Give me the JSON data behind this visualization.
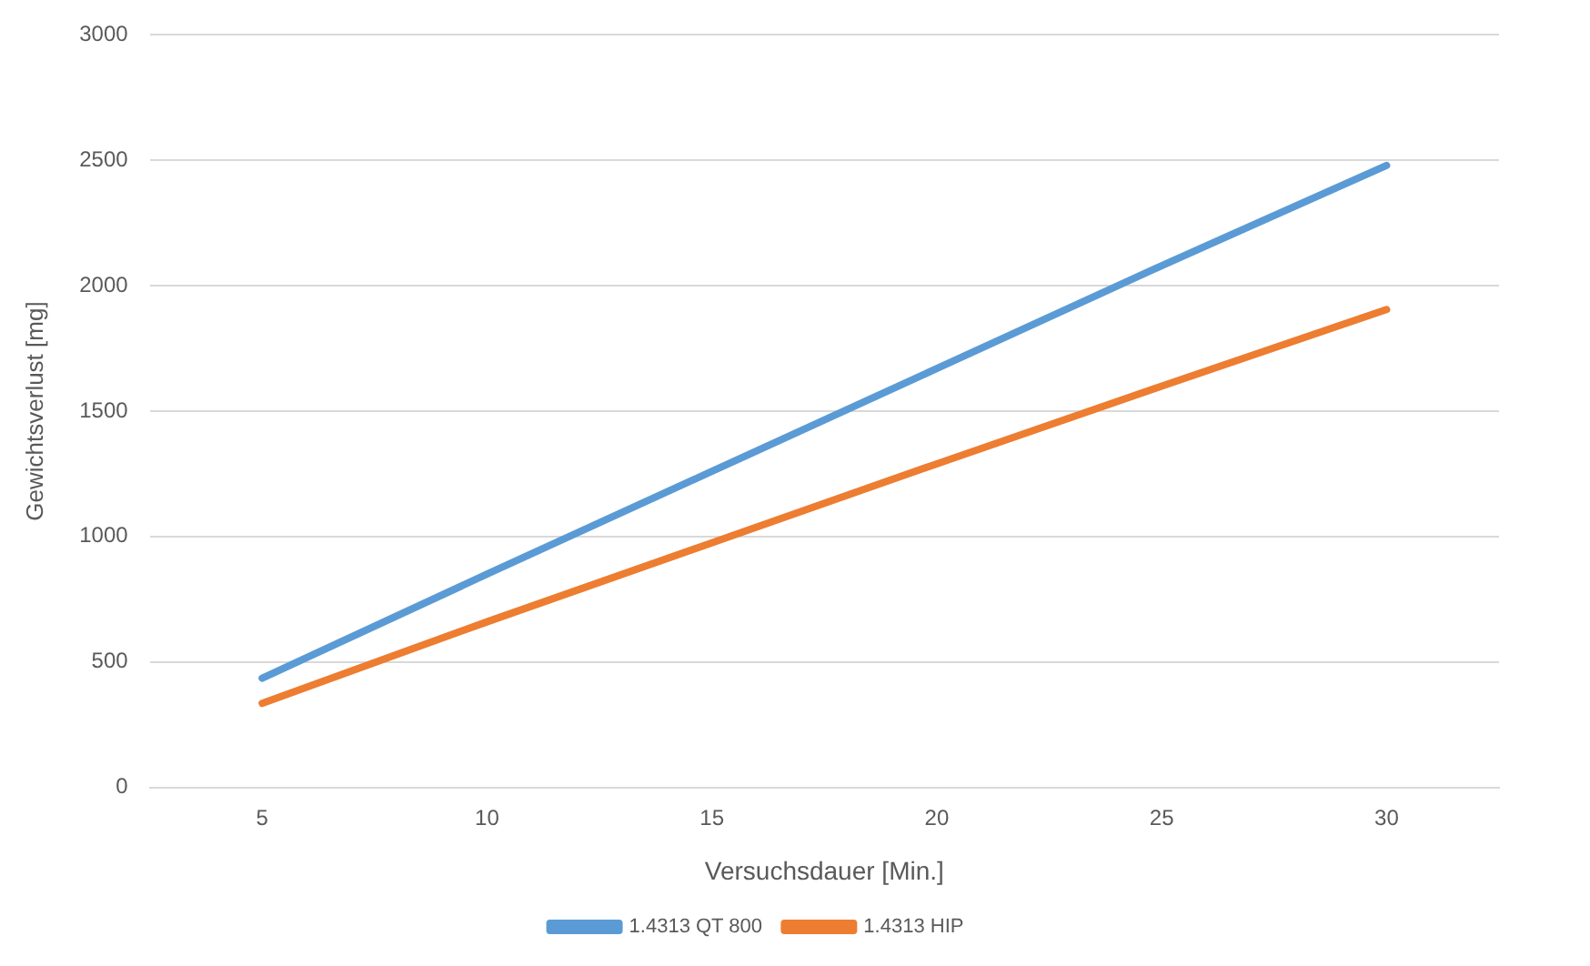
{
  "chart_data": {
    "type": "line",
    "xlabel": "Versuchsdauer [Min.]",
    "ylabel": "Gewichtsverlust [mg]",
    "categories": [
      "5",
      "10",
      "15",
      "20",
      "25",
      "30"
    ],
    "series": [
      {
        "name": "1.4313 QT 800",
        "color": "#5b9bd5",
        "values": [
          435,
          850,
          1260,
          1670,
          2080,
          2480
        ]
      },
      {
        "name": "1.4313 HIP",
        "color": "#ed7d31",
        "values": [
          335,
          660,
          975,
          1290,
          1600,
          1905
        ]
      }
    ],
    "ylim": [
      0,
      3000
    ],
    "yticks": [
      0,
      500,
      1000,
      1500,
      2000,
      2500,
      3000
    ],
    "grid": "y",
    "legend": "bottom",
    "marker": "none",
    "line_style": "solid"
  }
}
